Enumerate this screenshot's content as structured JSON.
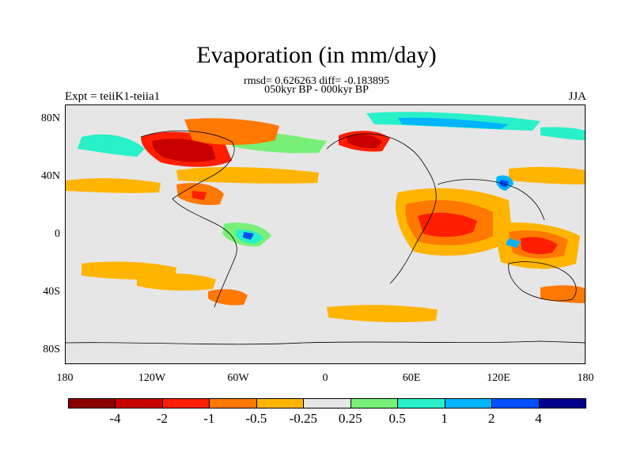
{
  "title": "Evaporation (in mm/day)",
  "subtitle_stats": "rmsd= 0.626263 diff= -0.183895",
  "subtitle_period": "050kyr BP - 000kyr BP",
  "experiment": "Expt = teiiK1-teiia1",
  "season": "JJA",
  "latitude_labels": [
    "80N",
    "40N",
    "0",
    "40S",
    "80S"
  ],
  "longitude_labels": [
    "180",
    "120W",
    "60W",
    "0",
    "60E",
    "120E",
    "180"
  ],
  "colorbar": {
    "labels": [
      "-4",
      "-2",
      "-1",
      "-0.5",
      "-0.25",
      "0.25",
      "0.5",
      "1",
      "2",
      "4"
    ],
    "colors": [
      "#8b0000",
      "#c80000",
      "#ff1e00",
      "#ff7800",
      "#ffb400",
      "#e6e6e6",
      "#78f078",
      "#28f0c8",
      "#00b4ff",
      "#0050ff",
      "#00008c"
    ]
  },
  "colors": {
    "land_background": "#e6e6e6",
    "coastline": "#000000"
  }
}
